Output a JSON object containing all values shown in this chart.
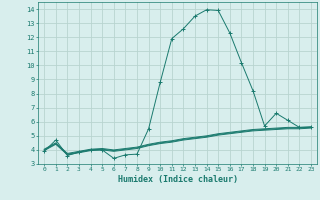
{
  "xlabel": "Humidex (Indice chaleur)",
  "xlim": [
    -0.5,
    23.5
  ],
  "ylim": [
    3,
    14.5
  ],
  "xticks": [
    0,
    1,
    2,
    3,
    4,
    5,
    6,
    7,
    8,
    9,
    10,
    11,
    12,
    13,
    14,
    15,
    16,
    17,
    18,
    19,
    20,
    21,
    22,
    23
  ],
  "yticks": [
    3,
    4,
    5,
    6,
    7,
    8,
    9,
    10,
    11,
    12,
    13,
    14
  ],
  "line_color": "#1a7a6e",
  "bg_color": "#d8eeed",
  "grid_color": "#b8d4d0",
  "line1_x": [
    0,
    1,
    2,
    3,
    4,
    5,
    6,
    7,
    8,
    9,
    10,
    11,
    12,
    13,
    14,
    15,
    16,
    17,
    18,
    19,
    20,
    21,
    22,
    23
  ],
  "line1_y": [
    3.9,
    4.7,
    3.6,
    3.85,
    4.0,
    4.0,
    3.4,
    3.65,
    3.7,
    5.5,
    8.8,
    11.9,
    12.6,
    13.5,
    13.95,
    13.9,
    12.3,
    10.2,
    8.2,
    5.7,
    6.6,
    6.1,
    5.6,
    5.6
  ],
  "line2_x": [
    0,
    1,
    2,
    3,
    4,
    5,
    6,
    7,
    8,
    9,
    10,
    11,
    12,
    13,
    14,
    15,
    16,
    17,
    18,
    19,
    20,
    21,
    22,
    23
  ],
  "line2_y": [
    4.05,
    4.5,
    3.75,
    3.9,
    4.05,
    4.1,
    4.0,
    4.1,
    4.2,
    4.4,
    4.55,
    4.65,
    4.8,
    4.9,
    5.0,
    5.15,
    5.25,
    5.35,
    5.45,
    5.5,
    5.55,
    5.6,
    5.6,
    5.65
  ],
  "line3_x": [
    0,
    1,
    2,
    3,
    4,
    5,
    6,
    7,
    8,
    9,
    10,
    11,
    12,
    13,
    14,
    15,
    16,
    17,
    18,
    19,
    20,
    21,
    22,
    23
  ],
  "line3_y": [
    4.0,
    4.45,
    3.7,
    3.85,
    4.0,
    4.05,
    3.95,
    4.05,
    4.15,
    4.35,
    4.5,
    4.6,
    4.75,
    4.85,
    4.95,
    5.1,
    5.2,
    5.3,
    5.4,
    5.45,
    5.5,
    5.55,
    5.55,
    5.6
  ],
  "line4_x": [
    0,
    1,
    2,
    3,
    4,
    5,
    6,
    7,
    8,
    9,
    10,
    11,
    12,
    13,
    14,
    15,
    16,
    17,
    18,
    19,
    20,
    21,
    22,
    23
  ],
  "line4_y": [
    3.95,
    4.4,
    3.65,
    3.8,
    3.95,
    4.0,
    3.9,
    4.0,
    4.1,
    4.3,
    4.45,
    4.55,
    4.7,
    4.8,
    4.9,
    5.05,
    5.15,
    5.25,
    5.35,
    5.4,
    5.45,
    5.5,
    5.5,
    5.55
  ]
}
